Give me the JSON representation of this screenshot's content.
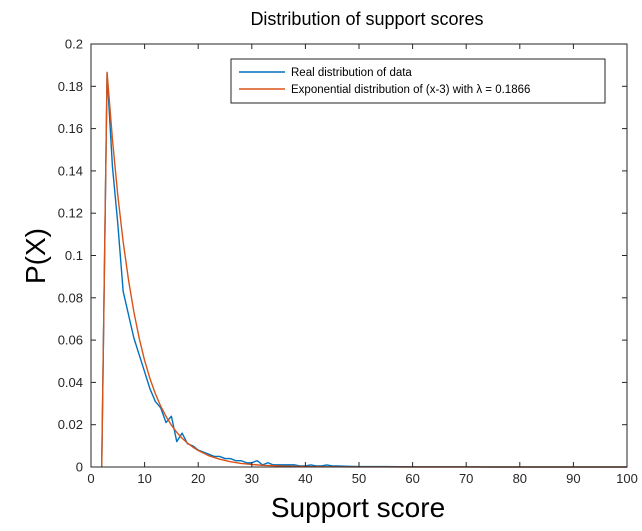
{
  "chart_data": {
    "type": "line",
    "title": "Distribution of support scores",
    "xlabel": "Support score",
    "ylabel": "P(X)",
    "xlim": [
      0,
      100
    ],
    "ylim": [
      0,
      0.2
    ],
    "x_ticks": [
      "0",
      "10",
      "20",
      "30",
      "40",
      "50",
      "60",
      "70",
      "80",
      "90",
      "100"
    ],
    "y_ticks": [
      "0",
      "0.02",
      "0.04",
      "0.06",
      "0.08",
      "0.1",
      "0.12",
      "0.14",
      "0.16",
      "0.18",
      "0.2"
    ],
    "grid": false,
    "legend_position": "top-right",
    "series": [
      {
        "name": "Real distribution of data",
        "color": "#0072BD",
        "x": [
          2,
          3,
          4,
          5,
          6,
          7,
          8,
          9,
          10,
          11,
          12,
          13,
          14,
          15,
          16,
          17,
          18,
          19,
          20,
          21,
          22,
          23,
          24,
          25,
          26,
          27,
          28,
          29,
          30,
          31,
          32,
          33,
          34,
          35,
          36,
          37,
          38,
          39,
          40,
          41,
          42,
          43,
          44,
          45,
          46,
          48,
          50,
          55,
          60,
          65,
          70,
          75,
          80,
          85,
          90,
          95,
          100
        ],
        "y": [
          0,
          0.186,
          0.142,
          0.115,
          0.083,
          0.072,
          0.061,
          0.053,
          0.045,
          0.037,
          0.031,
          0.028,
          0.021,
          0.024,
          0.012,
          0.016,
          0.011,
          0.01,
          0.008,
          0.007,
          0.006,
          0.005,
          0.005,
          0.004,
          0.004,
          0.003,
          0.003,
          0.002,
          0.002,
          0.003,
          0.001,
          0.002,
          0.001,
          0.001,
          0.001,
          0.001,
          0.001,
          0.0005,
          0.0005,
          0.001,
          0.0005,
          0.0005,
          0.001,
          0.0005,
          0.0005,
          0.0003,
          0.0002,
          0.0002,
          0.0001,
          0.0001,
          0.0001,
          0,
          0,
          0,
          0,
          0,
          0
        ]
      },
      {
        "name": "Exponential distribution of (x-3) with λ = 0.1866",
        "color": "#D95319",
        "lambda": 0.1866,
        "shift": 3,
        "x": [
          2,
          3,
          4,
          5,
          6,
          7,
          8,
          9,
          10,
          11,
          12,
          13,
          14,
          15,
          16,
          17,
          18,
          19,
          20,
          22,
          24,
          26,
          28,
          30,
          32,
          34,
          36,
          38,
          40,
          45,
          50,
          55,
          60,
          70,
          80,
          90,
          100
        ],
        "y": [
          0,
          0.1866,
          0.1549,
          0.1284,
          0.1065,
          0.0884,
          0.0733,
          0.0608,
          0.0504,
          0.0418,
          0.0347,
          0.0288,
          0.0239,
          0.0198,
          0.0164,
          0.0136,
          0.0113,
          0.0094,
          0.0078,
          0.0053,
          0.0037,
          0.0025,
          0.0017,
          0.0012,
          0.0008,
          0.0006,
          0.0004,
          0.0003,
          0.0002,
          0.0001,
          3e-05,
          1e-05,
          0,
          0,
          0,
          0,
          0
        ]
      }
    ]
  }
}
